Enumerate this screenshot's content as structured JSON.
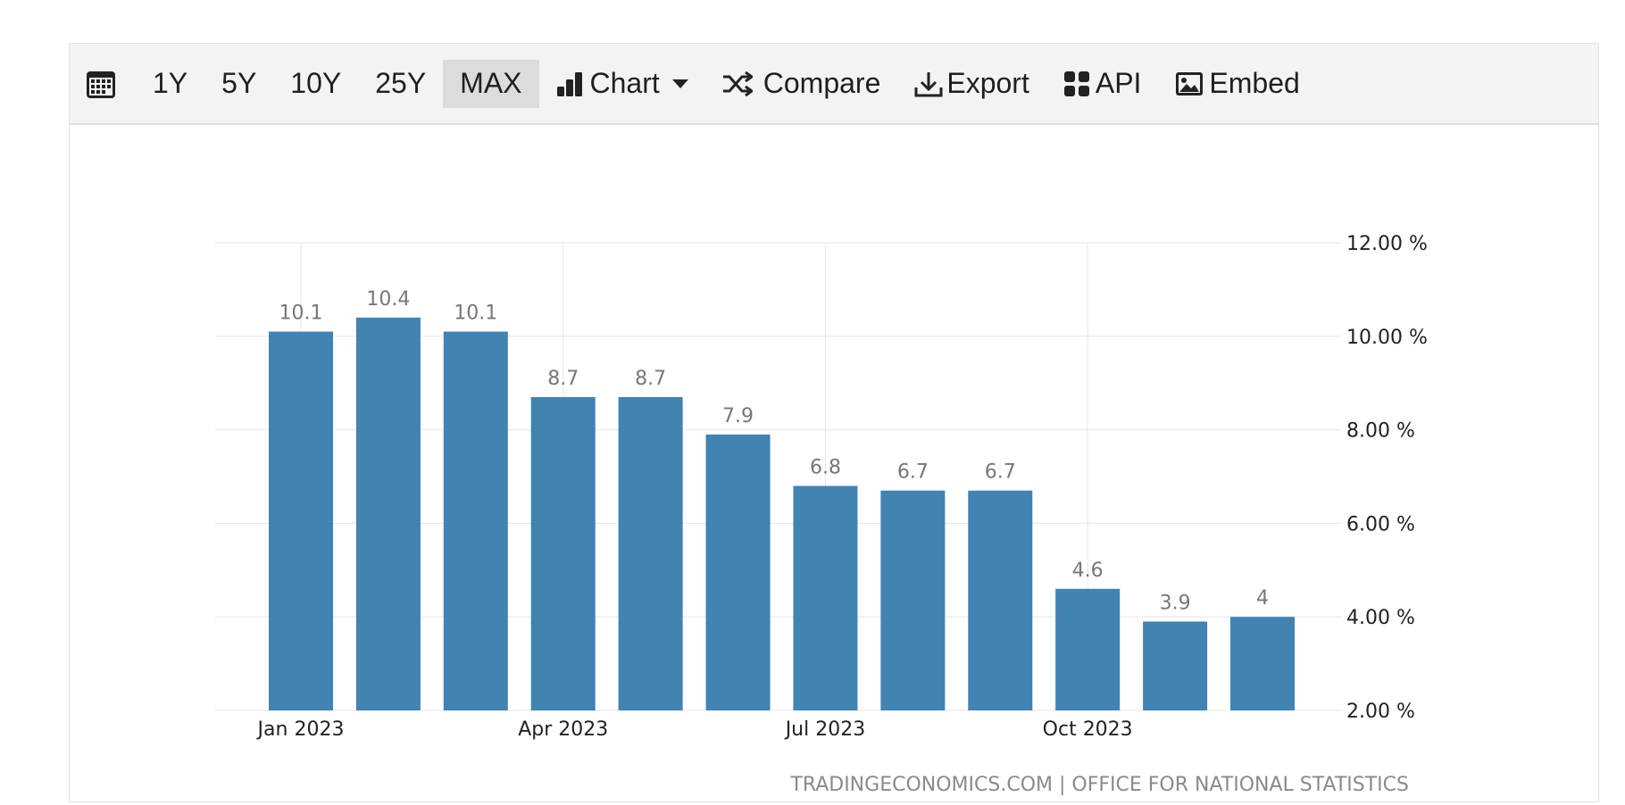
{
  "toolbar": {
    "ranges": [
      "1Y",
      "5Y",
      "10Y",
      "25Y",
      "MAX"
    ],
    "active_range": "MAX",
    "chart_label": "Chart",
    "compare_label": "Compare",
    "export_label": "Export",
    "api_label": "API",
    "embed_label": "Embed"
  },
  "colors": {
    "bar": "#4183b2",
    "data_label": "#777777",
    "grid": "#e6e6e6",
    "axis_text": "#222222",
    "source_text": "#8a8a8a"
  },
  "chart_data": {
    "type": "bar",
    "categories": [
      "Jan 2023",
      "Feb 2023",
      "Mar 2023",
      "Apr 2023",
      "May 2023",
      "Jun 2023",
      "Jul 2023",
      "Aug 2023",
      "Sep 2023",
      "Oct 2023",
      "Nov 2023",
      "Dec 2023"
    ],
    "values": [
      10.1,
      10.4,
      10.1,
      8.7,
      8.7,
      7.9,
      6.8,
      6.7,
      6.7,
      4.6,
      3.9,
      4
    ],
    "data_labels": [
      "10.1",
      "10.4",
      "10.1",
      "8.7",
      "8.7",
      "7.9",
      "6.8",
      "6.7",
      "6.7",
      "4.6",
      "3.9",
      "4"
    ],
    "x_tick_labels": [
      "Jan 2023",
      "Apr 2023",
      "Jul 2023",
      "Oct 2023"
    ],
    "x_tick_indices": [
      0,
      3,
      6,
      9
    ],
    "y_ticks": [
      2,
      4,
      6,
      8,
      10,
      12
    ],
    "y_tick_labels": [
      "2.00 %",
      "4.00 %",
      "6.00 %",
      "8.00 %",
      "10.00 %",
      "12.00 %"
    ],
    "ylim": [
      2,
      12
    ],
    "y_axis_side": "right",
    "grid": true,
    "title": "",
    "xlabel": "",
    "ylabel": "",
    "source": "TRADINGECONOMICS.COM | OFFICE FOR NATIONAL STATISTICS"
  }
}
